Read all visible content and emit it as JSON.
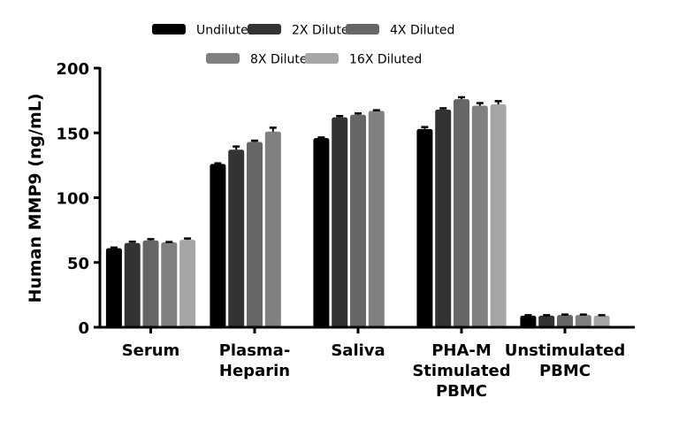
{
  "chart_data": {
    "type": "bar",
    "title": "",
    "xlabel": "",
    "ylabel": "Human MMP9 (ng/mL)",
    "ylim": [
      0,
      200
    ],
    "yticks": [
      0,
      50,
      100,
      150,
      200
    ],
    "grid": false,
    "legend_placement": "top",
    "error_bars": true,
    "categories": [
      [
        "Serum"
      ],
      [
        "Plasma-",
        "Heparin"
      ],
      [
        "Saliva"
      ],
      [
        "PHA-M",
        "Stimulated",
        "PBMC"
      ],
      [
        "Unstimulated",
        "PBMC"
      ]
    ],
    "series": [
      {
        "name": "Undiluted",
        "color": "#000000",
        "values": [
          61,
          126,
          146,
          153,
          9
        ],
        "errors": [
          0.5,
          0.5,
          0.5,
          1.5,
          0.3
        ]
      },
      {
        "name": "2X Diluted",
        "color": "#333333",
        "values": [
          65,
          137,
          162,
          168,
          9
        ],
        "errors": [
          1,
          2.5,
          1,
          1,
          0.3
        ]
      },
      {
        "name": "4X Diluted",
        "color": "#666666",
        "values": [
          67,
          143,
          164,
          176,
          9.5
        ],
        "errors": [
          1,
          1,
          1,
          1.5,
          0.3
        ]
      },
      {
        "name": "8X Diluted",
        "color": "#808080",
        "values": [
          65.5,
          151,
          167,
          171,
          9.5
        ],
        "errors": [
          0.3,
          3,
          0.5,
          2,
          0.3
        ]
      },
      {
        "name": "16X Diluted",
        "color": "#a6a6a6",
        "values": [
          67.5,
          null,
          null,
          172,
          9
        ],
        "errors": [
          1,
          null,
          null,
          2.5,
          0.3
        ]
      }
    ]
  }
}
